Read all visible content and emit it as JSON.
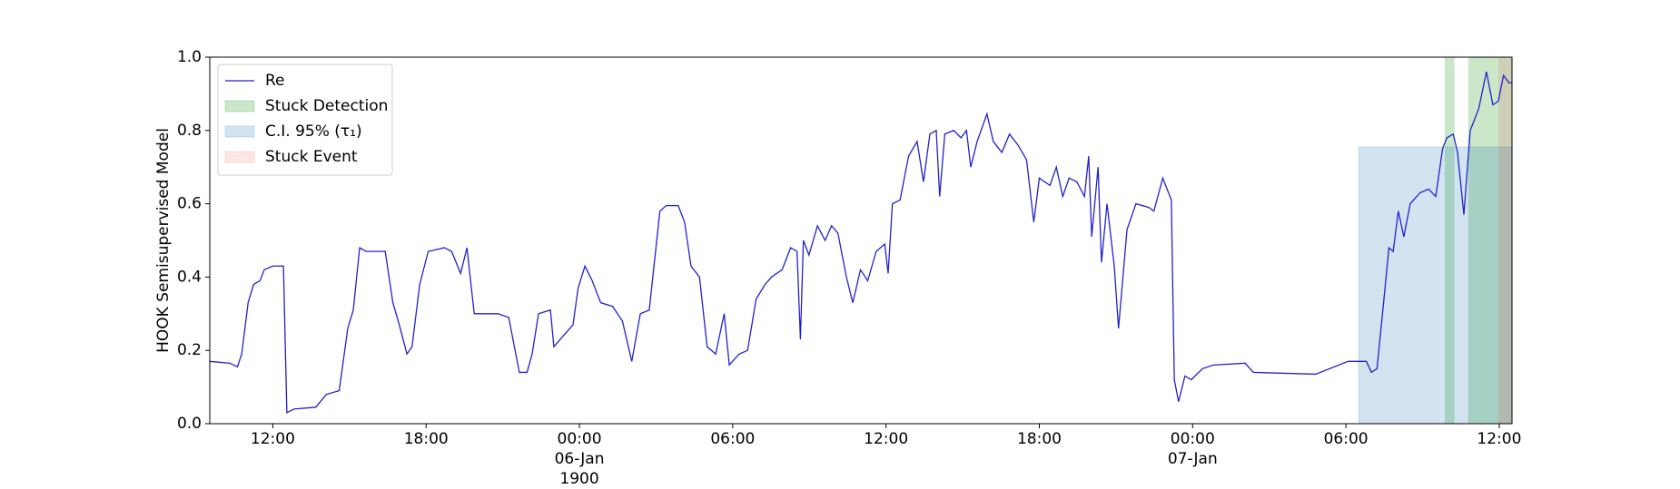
{
  "chart_data": {
    "type": "line",
    "ylabel": "HOOK Semisupervised Model",
    "xlim": [
      "1900-01-05T09:32",
      "1900-01-07T12:30"
    ],
    "ylim": [
      0,
      1
    ],
    "yticks": [
      {
        "value": 0,
        "label": "0.0"
      },
      0.2,
      0.4,
      0.6,
      0.8,
      {
        "value": 1,
        "label": "1.0"
      }
    ],
    "xticks": [
      {
        "value": "1900-01-05T12:00",
        "label": "12:00"
      },
      {
        "value": "1900-01-05T18:00",
        "label": "18:00"
      },
      {
        "value": "1900-01-06T00:00",
        "label": "00:00\n06-Jan\n1900"
      },
      {
        "value": "1900-01-06T06:00",
        "label": "06:00"
      },
      {
        "value": "1900-01-06T12:00",
        "label": "12:00"
      },
      {
        "value": "1900-01-06T18:00",
        "label": "18:00"
      },
      {
        "value": "1900-01-07T00:00",
        "label": "00:00\n07-Jan"
      },
      {
        "value": "1900-01-07T06:00",
        "label": "06:00"
      },
      {
        "value": "1900-01-07T12:00",
        "label": "12:00"
      }
    ],
    "legend": "upper left",
    "series": [
      {
        "name": "Re",
        "color": "#2222cc",
        "x": [
          "1900-01-05T09:32",
          "1900-01-05T10:19",
          "1900-01-05T10:37",
          "1900-01-05T10:47",
          "1900-01-05T11:02",
          "1900-01-05T11:15",
          "1900-01-05T11:30",
          "1900-01-05T11:40",
          "1900-01-05T12:00",
          "1900-01-05T12:25",
          "1900-01-05T12:33",
          "1900-01-05T12:50",
          "1900-01-05T13:41",
          "1900-01-05T14:06",
          "1900-01-05T14:36",
          "1900-01-05T14:56",
          "1900-01-05T15:09",
          "1900-01-05T15:24",
          "1900-01-05T15:39",
          "1900-01-05T16:24",
          "1900-01-05T16:42",
          "1900-01-05T16:57",
          "1900-01-05T17:15",
          "1900-01-05T17:27",
          "1900-01-05T17:45",
          "1900-01-05T18:05",
          "1900-01-05T18:43",
          "1900-01-05T19:00",
          "1900-01-05T19:21",
          "1900-01-05T19:36",
          "1900-01-05T19:53",
          "1900-01-05T20:49",
          "1900-01-05T21:14",
          "1900-01-05T21:39",
          "1900-01-05T21:57",
          "1900-01-05T22:09",
          "1900-01-05T22:24",
          "1900-01-05T22:52",
          "1900-01-05T23:00",
          "1900-01-05T23:15",
          "1900-01-05T23:45",
          "1900-01-05T23:57",
          "1900-01-06T00:13",
          "1900-01-06T00:30",
          "1900-01-06T00:50",
          "1900-01-06T01:18",
          "1900-01-06T01:41",
          "1900-01-06T02:03",
          "1900-01-06T02:23",
          "1900-01-06T02:44",
          "1900-01-06T03:09",
          "1900-01-06T03:24",
          "1900-01-06T03:52",
          "1900-01-06T04:07",
          "1900-01-06T04:22",
          "1900-01-06T04:42",
          "1900-01-06T05:00",
          "1900-01-06T05:20",
          "1900-01-06T05:40",
          "1900-01-06T05:52",
          "1900-01-06T06:15",
          "1900-01-06T06:35",
          "1900-01-06T06:55",
          "1900-01-06T07:16",
          "1900-01-06T07:31",
          "1900-01-06T07:56",
          "1900-01-06T08:16",
          "1900-01-06T08:31",
          "1900-01-06T08:39",
          "1900-01-06T08:46",
          "1900-01-06T08:59",
          "1900-01-06T09:19",
          "1900-01-06T09:37",
          "1900-01-06T09:52",
          "1900-01-06T10:07",
          "1900-01-06T10:27",
          "1900-01-06T10:42",
          "1900-01-06T11:00",
          "1900-01-06T11:17",
          "1900-01-06T11:37",
          "1900-01-06T11:57",
          "1900-01-06T12:05",
          "1900-01-06T12:15",
          "1900-01-06T12:33",
          "1900-01-06T12:53",
          "1900-01-06T13:13",
          "1900-01-06T13:28",
          "1900-01-06T13:43",
          "1900-01-06T13:58",
          "1900-01-06T14:06",
          "1900-01-06T14:18",
          "1900-01-06T14:39",
          "1900-01-06T14:56",
          "1900-01-06T15:09",
          "1900-01-06T15:19",
          "1900-01-06T15:34",
          "1900-01-06T15:57",
          "1900-01-06T16:12",
          "1900-01-06T16:32",
          "1900-01-06T16:50",
          "1900-01-06T17:10",
          "1900-01-06T17:30",
          "1900-01-06T17:47",
          "1900-01-06T18:00",
          "1900-01-06T18:25",
          "1900-01-06T18:40",
          "1900-01-06T18:55",
          "1900-01-06T19:10",
          "1900-01-06T19:28",
          "1900-01-06T19:46",
          "1900-01-06T19:56",
          "1900-01-06T20:03",
          "1900-01-06T20:18",
          "1900-01-06T20:26",
          "1900-01-06T20:39",
          "1900-01-06T20:56",
          "1900-01-06T21:06",
          "1900-01-06T21:26",
          "1900-01-06T21:47",
          "1900-01-06T22:17",
          "1900-01-06T22:29",
          "1900-01-06T22:50",
          "1900-01-06T23:10",
          "1900-01-06T23:17",
          "1900-01-06T23:27",
          "1900-01-06T23:42",
          "1900-01-06T23:57",
          "1900-01-07T00:23",
          "1900-01-07T00:48",
          "1900-01-07T02:03",
          "1900-01-07T02:23",
          "1900-01-07T04:49",
          "1900-01-07T06:05",
          "1900-01-07T06:48",
          "1900-01-07T07:00",
          "1900-01-07T07:13",
          "1900-01-07T07:31",
          "1900-01-07T07:41",
          "1900-01-07T07:51",
          "1900-01-07T08:03",
          "1900-01-07T08:16",
          "1900-01-07T08:31",
          "1900-01-07T08:54",
          "1900-01-07T09:14",
          "1900-01-07T09:31",
          "1900-01-07T09:47",
          "1900-01-07T09:57",
          "1900-01-07T10:12",
          "1900-01-07T10:22",
          "1900-01-07T10:37",
          "1900-01-07T10:52",
          "1900-01-07T11:12",
          "1900-01-07T11:30",
          "1900-01-07T11:45",
          "1900-01-07T11:58",
          "1900-01-07T12:10",
          "1900-01-07T12:23",
          "1900-01-07T12:30"
        ],
        "values": [
          0.17,
          0.165,
          0.155,
          0.19,
          0.33,
          0.38,
          0.39,
          0.42,
          0.43,
          0.43,
          0.03,
          0.04,
          0.045,
          0.08,
          0.09,
          0.26,
          0.31,
          0.48,
          0.47,
          0.47,
          0.33,
          0.27,
          0.19,
          0.21,
          0.38,
          0.47,
          0.48,
          0.47,
          0.41,
          0.48,
          0.3,
          0.3,
          0.29,
          0.14,
          0.14,
          0.19,
          0.3,
          0.31,
          0.21,
          0.23,
          0.27,
          0.37,
          0.43,
          0.39,
          0.33,
          0.32,
          0.28,
          0.17,
          0.3,
          0.31,
          0.58,
          0.595,
          0.595,
          0.55,
          0.43,
          0.4,
          0.21,
          0.19,
          0.3,
          0.16,
          0.19,
          0.2,
          0.34,
          0.38,
          0.4,
          0.42,
          0.48,
          0.47,
          0.23,
          0.5,
          0.46,
          0.54,
          0.5,
          0.54,
          0.52,
          0.4,
          0.33,
          0.42,
          0.39,
          0.47,
          0.49,
          0.41,
          0.6,
          0.61,
          0.73,
          0.77,
          0.66,
          0.79,
          0.8,
          0.62,
          0.79,
          0.8,
          0.78,
          0.8,
          0.7,
          0.77,
          0.845,
          0.77,
          0.74,
          0.79,
          0.76,
          0.72,
          0.55,
          0.67,
          0.65,
          0.7,
          0.62,
          0.67,
          0.66,
          0.62,
          0.73,
          0.51,
          0.7,
          0.44,
          0.6,
          0.43,
          0.26,
          0.53,
          0.6,
          0.59,
          0.58,
          0.67,
          0.61,
          0.12,
          0.06,
          0.13,
          0.12,
          0.15,
          0.16,
          0.165,
          0.14,
          0.135,
          0.17,
          0.17,
          0.14,
          0.15,
          0.36,
          0.48,
          0.47,
          0.58,
          0.51,
          0.6,
          0.63,
          0.64,
          0.62,
          0.75,
          0.78,
          0.79,
          0.74,
          0.57,
          0.8,
          0.86,
          0.96,
          0.87,
          0.88,
          0.95,
          0.93,
          0.93
        ]
      }
    ],
    "spans": [
      {
        "name": "Stuck Detection",
        "color": "rgba(44,160,44,0.25)",
        "ranges": [
          [
            "1900-01-07T09:52",
            "1900-01-07T10:15"
          ],
          [
            "1900-01-07T10:47",
            "1900-01-07T12:30"
          ]
        ]
      },
      {
        "name": "C.I. 95% (τ₁)",
        "color": "rgba(31,119,180,0.2)",
        "ranges": [
          [
            "1900-01-07T06:30",
            "1900-01-07T12:30"
          ]
        ],
        "ymax": 0.755
      },
      {
        "name": "Stuck Event",
        "color": "rgba(255,0,0,0.1)",
        "ranges": [
          [
            "1900-01-07T11:58",
            "1900-01-07T12:30"
          ]
        ]
      }
    ]
  }
}
